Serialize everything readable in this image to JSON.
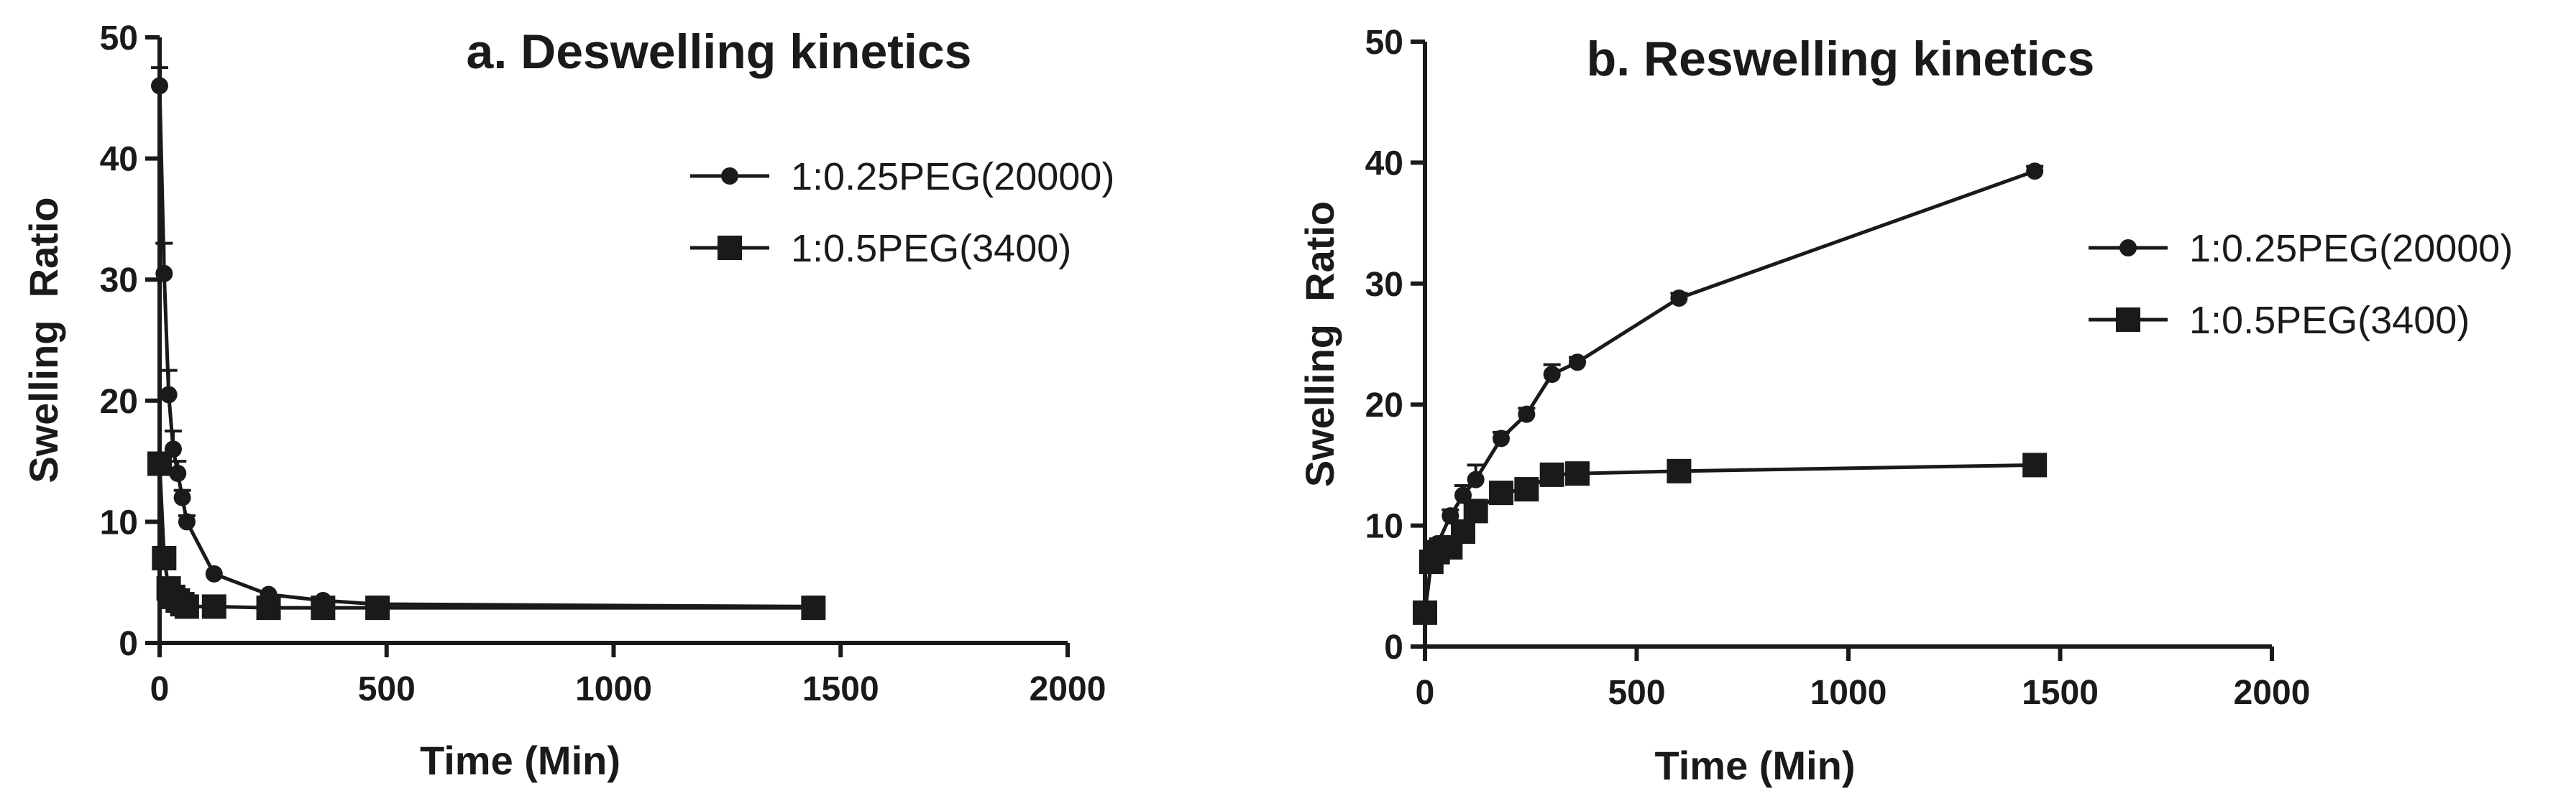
{
  "chart_data": [
    {
      "panel": "a",
      "type": "line",
      "title": "a. Deswelling kinetics",
      "xlabel": "Time (Min)",
      "ylabel": "Swelling  Ratio",
      "xlim": [
        0,
        2000
      ],
      "ylim": [
        0,
        50
      ],
      "xticks": [
        0,
        500,
        1000,
        1500,
        2000
      ],
      "yticks": [
        0,
        10,
        20,
        30,
        40,
        50
      ],
      "legend_position": "top-right",
      "series": [
        {
          "name": "1:0.25PEG(20000)",
          "marker": "circle",
          "x": [
            0,
            10,
            20,
            30,
            40,
            50,
            60,
            120,
            240,
            360,
            480,
            1440
          ],
          "y": [
            46,
            30.5,
            20.5,
            16,
            14,
            12,
            10,
            5.7,
            4,
            3.5,
            3.2,
            3
          ],
          "err": [
            1.5,
            2.5,
            2,
            1.5,
            1,
            0.6,
            0.5,
            0.3,
            0.2,
            0.2,
            0.2,
            0.1
          ]
        },
        {
          "name": "1:0.5PEG(3400)",
          "marker": "square",
          "x": [
            0,
            10,
            20,
            30,
            40,
            50,
            60,
            120,
            240,
            360,
            480,
            1440
          ],
          "y": [
            14.8,
            7,
            4.5,
            3.8,
            3.5,
            3.2,
            3,
            3,
            2.9,
            2.9,
            2.9,
            2.9
          ],
          "err": [
            0.5,
            0.4,
            0.3,
            0.2,
            0.2,
            0.1,
            0.1,
            0.1,
            0.1,
            0.1,
            0.1,
            0.1
          ]
        }
      ]
    },
    {
      "panel": "b",
      "type": "line",
      "title": "b. Reswelling kinetics",
      "xlabel": "Time (Min)",
      "ylabel": "Swelling  Ratio",
      "xlim": [
        0,
        2000
      ],
      "ylim": [
        0,
        50
      ],
      "xticks": [
        0,
        500,
        1000,
        1500,
        2000
      ],
      "yticks": [
        0,
        10,
        20,
        30,
        40,
        50
      ],
      "legend_position": "middle-right",
      "series": [
        {
          "name": "1:0.25PEG(20000)",
          "marker": "circle",
          "x": [
            0,
            15,
            30,
            60,
            90,
            120,
            180,
            240,
            300,
            360,
            600,
            1440
          ],
          "y": [
            3,
            7,
            8.5,
            10.8,
            12.5,
            13.8,
            17.2,
            19.2,
            22.5,
            23.5,
            28.8,
            39.3
          ],
          "err": [
            0.2,
            0.3,
            0.4,
            0.5,
            0.8,
            1.2,
            0.5,
            0.5,
            0.8,
            0.4,
            0.4,
            0.4
          ]
        },
        {
          "name": "1:0.5PEG(3400)",
          "marker": "square",
          "x": [
            0,
            15,
            30,
            60,
            90,
            120,
            180,
            240,
            300,
            360,
            600,
            1440
          ],
          "y": [
            2.8,
            7,
            7.8,
            8.2,
            9.5,
            11.2,
            12.7,
            13,
            14.2,
            14.3,
            14.5,
            15
          ],
          "err": [
            0.2,
            0.3,
            0.3,
            0.4,
            0.4,
            0.4,
            0.3,
            0.3,
            0.3,
            0.3,
            0.3,
            0.3
          ]
        }
      ]
    }
  ]
}
